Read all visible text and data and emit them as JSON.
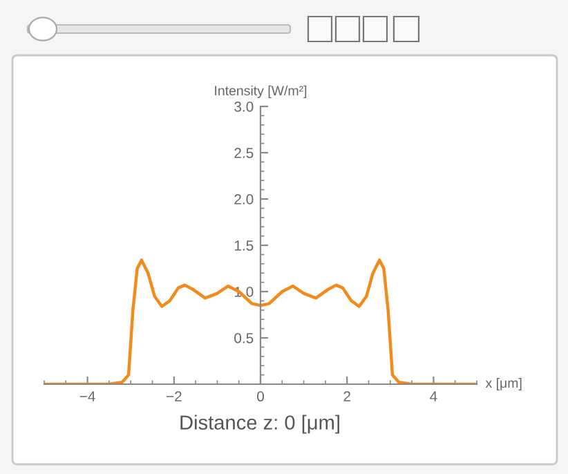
{
  "chart_data": {
    "type": "line",
    "title": "Distance z: 0 [μm]",
    "xlabel": "x [μm]",
    "ylabel": "Intensity [W/m²]",
    "xlim": [
      -5,
      5
    ],
    "ylim": [
      0,
      3
    ],
    "xticks": [
      {
        "value": -4,
        "label": "−4"
      },
      {
        "value": -2,
        "label": "−2"
      },
      0,
      2,
      4
    ],
    "yticks": [
      0.5,
      {
        "value": 1,
        "label": "1.0"
      },
      1.5,
      {
        "value": 2,
        "label": "2.0"
      },
      2.5,
      {
        "value": 3,
        "label": "3.0"
      }
    ],
    "grid": false,
    "marker": "none",
    "line_style": "solid",
    "series": [
      {
        "color": "#f28a1c",
        "x": [
          -5,
          -3.5,
          -3.2,
          -3.05,
          -2.95,
          -2.85,
          -2.75,
          -2.6,
          -2.45,
          -2.28,
          -2.1,
          -1.9,
          -1.75,
          -1.55,
          -1.28,
          -1.0,
          -0.75,
          -0.5,
          -0.2,
          0,
          0.2,
          0.5,
          0.75,
          1.0,
          1.28,
          1.55,
          1.75,
          1.9,
          2.1,
          2.28,
          2.45,
          2.6,
          2.75,
          2.85,
          2.95,
          3.05,
          3.2,
          3.5,
          5
        ],
        "values": [
          0,
          0,
          0.02,
          0.1,
          0.8,
          1.25,
          1.34,
          1.2,
          0.95,
          0.84,
          0.9,
          1.04,
          1.07,
          1.02,
          0.93,
          0.98,
          1.06,
          1.0,
          0.87,
          0.85,
          0.87,
          1.0,
          1.06,
          0.98,
          0.93,
          1.02,
          1.07,
          1.04,
          0.9,
          0.84,
          0.95,
          1.2,
          1.34,
          1.25,
          0.8,
          0.1,
          0.02,
          0,
          0
        ]
      }
    ]
  }
}
